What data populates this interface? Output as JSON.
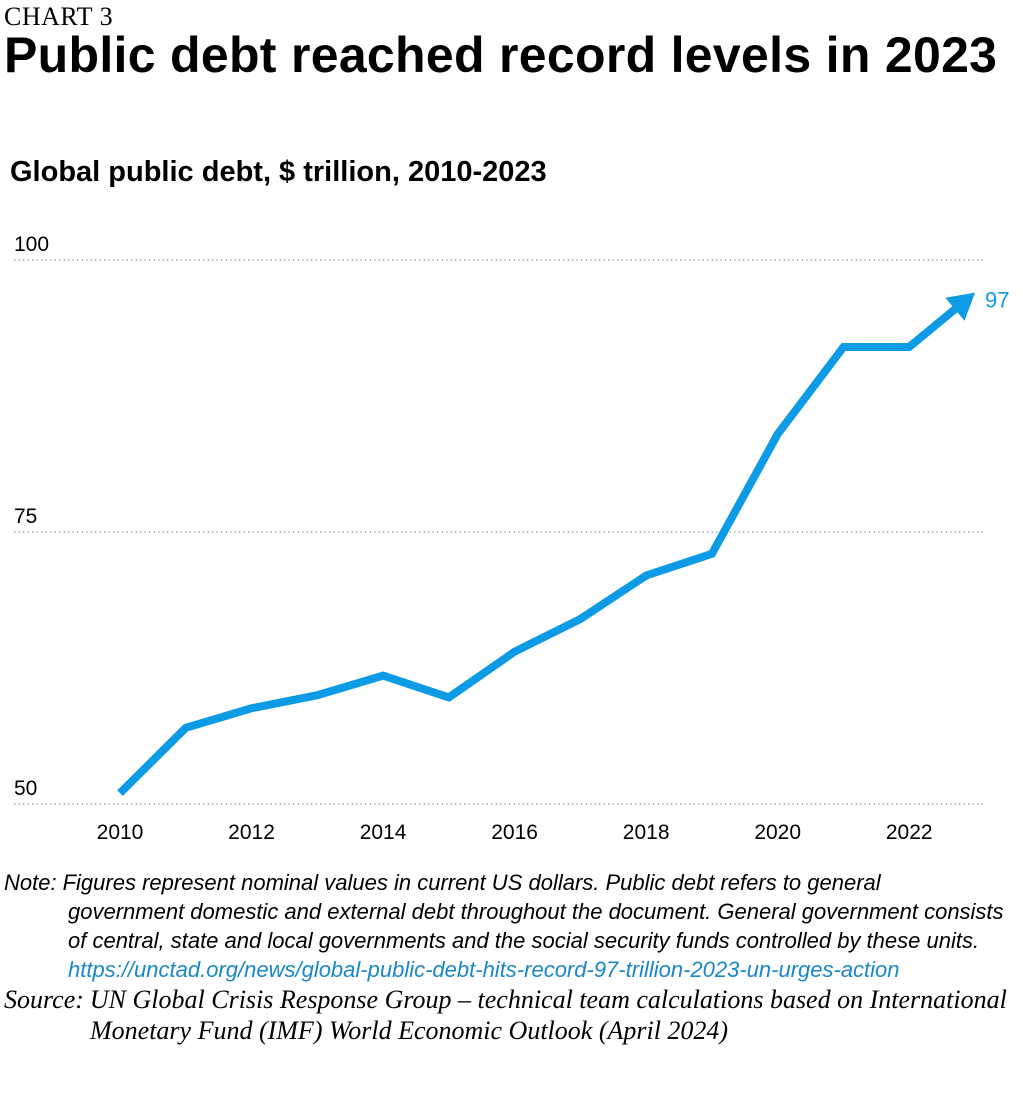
{
  "header": {
    "kicker": "CHART 3",
    "title": "Public debt reached record levels in 2023",
    "subtitle": "Global public debt, $ trillion, 2010-2023"
  },
  "chart_data": {
    "type": "line",
    "title": "Public debt reached record levels in 2023",
    "subtitle": "Global public debt, $ trillion, 2010-2023",
    "xlabel": "",
    "ylabel": "",
    "x": [
      2010,
      2011,
      2012,
      2013,
      2014,
      2015,
      2016,
      2017,
      2018,
      2019,
      2020,
      2021,
      2022,
      2023
    ],
    "x_ticks": [
      "2010",
      "2012",
      "2014",
      "2016",
      "2018",
      "2020",
      "2022"
    ],
    "y_ticks": [
      "50",
      "75",
      "100"
    ],
    "ylim": [
      50,
      100
    ],
    "grid": "horizontal dotted",
    "series": [
      {
        "values": [
          51,
          57,
          58.8,
          60,
          61.8,
          59.8,
          64,
          67,
          71,
          73,
          84,
          92,
          92,
          97
        ],
        "color": "#0d9be6",
        "end_label": "97"
      }
    ]
  },
  "notes": {
    "note_label": "Note:",
    "note_first": "Figures represent nominal values in current US dollars. Public debt refers to general",
    "note_rest": "government domestic and external debt throughout the document. General government consists of central, state and local governments and the social security funds controlled by these units.",
    "link": "https://unctad.org/news/global-public-debt-hits-record-97-trillion-2023-un-urges-action",
    "source_label": "Source:",
    "source_first": "UN Global Crisis Response Group – technical team calculations based on International",
    "source_rest": "Monetary Fund (IMF) World Economic Outlook (April 2024)"
  }
}
